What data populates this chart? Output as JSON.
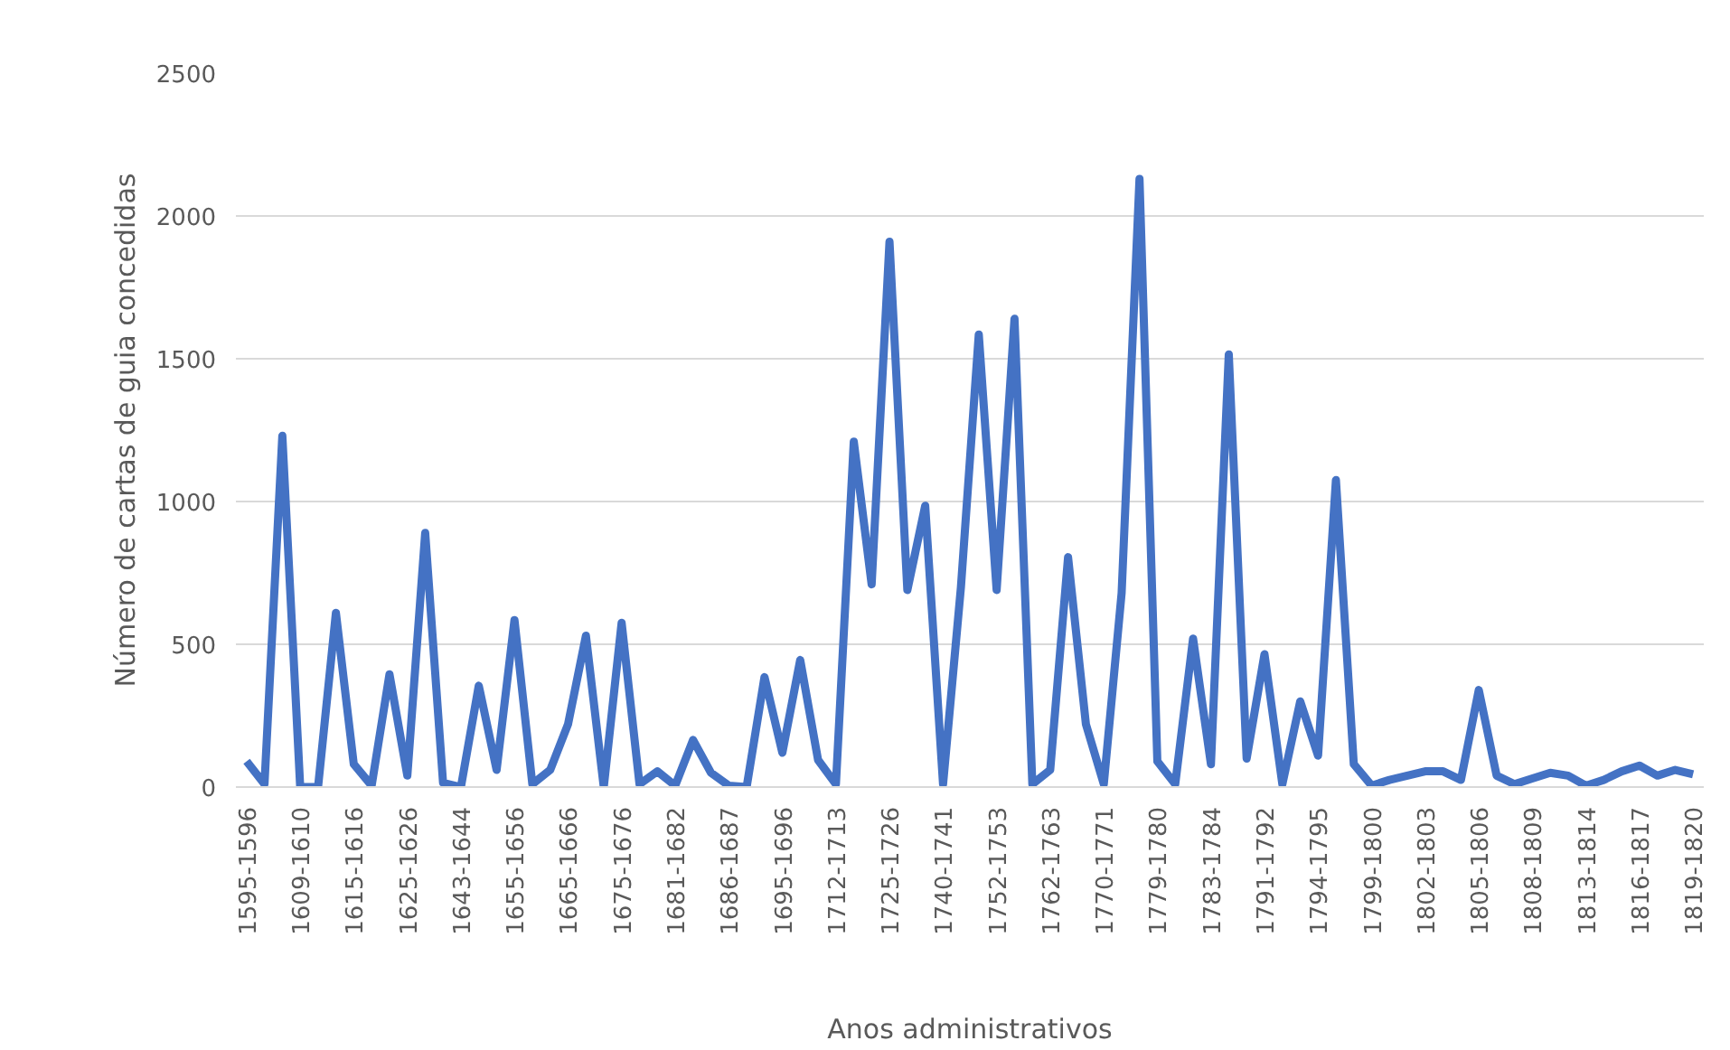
{
  "chart_data": {
    "type": "line",
    "xlabel": "Anos administrativos",
    "ylabel": "Número de cartas de guia concedidas",
    "categories": [
      "1595-1596",
      null,
      null,
      "1609-1610",
      null,
      null,
      "1615-1616",
      null,
      null,
      "1625-1626",
      null,
      null,
      "1643-1644",
      null,
      null,
      "1655-1656",
      null,
      null,
      "1665-1666",
      null,
      null,
      "1675-1676",
      null,
      null,
      "1681-1682",
      null,
      null,
      "1686-1687",
      null,
      null,
      "1695-1696",
      null,
      null,
      "1712-1713",
      null,
      null,
      "1725-1726",
      null,
      null,
      "1740-1741",
      null,
      null,
      "1752-1753",
      null,
      null,
      "1762-1763",
      null,
      null,
      "1770-1771",
      null,
      null,
      "1779-1780",
      null,
      null,
      "1783-1784",
      null,
      null,
      "1791-1792",
      null,
      null,
      "1794-1795",
      null,
      null,
      "1799-1800",
      null,
      null,
      "1802-1803",
      null,
      null,
      "1805-1806",
      null,
      null,
      "1808-1809",
      null,
      null,
      "1813-1814",
      null,
      null,
      "1816-1817",
      null,
      null,
      "1819-1820"
    ],
    "series": [
      {
        "color": "#4472c4",
        "values": [
          90,
          10,
          1230,
          0,
          0,
          610,
          80,
          5,
          395,
          40,
          890,
          15,
          0,
          355,
          60,
          585,
          10,
          60,
          220,
          530,
          0,
          575,
          10,
          55,
          5,
          165,
          50,
          5,
          0,
          385,
          120,
          445,
          95,
          10,
          1210,
          710,
          1910,
          690,
          985,
          10,
          700,
          1585,
          690,
          1640,
          10,
          60,
          805,
          220,
          10,
          680,
          2130,
          90,
          10,
          520,
          80,
          1515,
          100,
          465,
          10,
          300,
          110,
          1075,
          80,
          5,
          25,
          40,
          55,
          55,
          25,
          340,
          40,
          10,
          30,
          50,
          40,
          5,
          25,
          55,
          75,
          40,
          60,
          45
        ]
      }
    ],
    "ylim": [
      0,
      2500
    ],
    "yticks": [
      0,
      500,
      1000,
      1500,
      2000,
      2500
    ],
    "grid": "y",
    "line_style": "solid"
  }
}
